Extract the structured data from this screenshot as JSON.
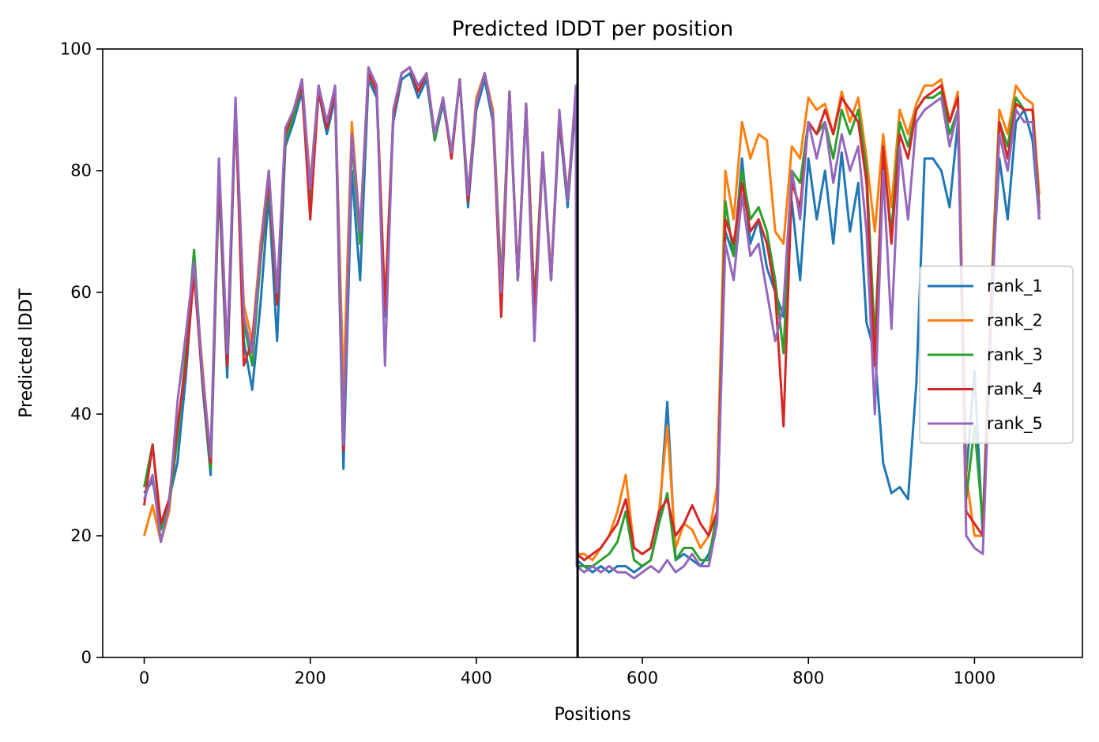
{
  "chart_data": {
    "type": "line",
    "title": "Predicted lDDT per position",
    "xlabel": "Positions",
    "ylabel": "Predicted lDDT",
    "xlim": [
      -50,
      1130
    ],
    "ylim": [
      0,
      100
    ],
    "xticks": [
      0,
      200,
      400,
      600,
      800,
      1000
    ],
    "yticks": [
      0,
      20,
      40,
      60,
      80,
      100
    ],
    "grid": false,
    "legend_position": "center-right",
    "vline_x": 522,
    "colors": {
      "rank_1": "#1f77b4",
      "rank_2": "#ff7f0e",
      "rank_3": "#2ca02c",
      "rank_4": "#d62728",
      "rank_5": "#9467bd",
      "vline": "#000000"
    },
    "series": [
      {
        "name": "rank_1",
        "x": [
          0,
          10,
          20,
          30,
          40,
          50,
          60,
          70,
          80,
          90,
          100,
          110,
          120,
          130,
          140,
          150,
          160,
          170,
          180,
          190,
          200,
          210,
          220,
          230,
          240,
          250,
          260,
          270,
          280,
          290,
          300,
          310,
          320,
          330,
          340,
          350,
          360,
          370,
          380,
          390,
          400,
          410,
          420,
          430,
          440,
          450,
          460,
          470,
          480,
          490,
          500,
          510,
          520,
          521,
          530,
          540,
          550,
          560,
          570,
          580,
          590,
          600,
          610,
          620,
          630,
          640,
          650,
          660,
          670,
          680,
          690,
          700,
          710,
          720,
          730,
          740,
          750,
          760,
          770,
          780,
          790,
          800,
          810,
          820,
          830,
          840,
          850,
          860,
          870,
          880,
          890,
          900,
          910,
          920,
          930,
          940,
          950,
          960,
          970,
          980,
          990,
          1000,
          1010,
          1020,
          1030,
          1040,
          1050,
          1060,
          1070,
          1078
        ],
        "y": [
          27,
          29,
          22,
          26,
          32,
          46,
          64,
          45,
          30,
          78,
          46,
          90,
          52,
          44,
          58,
          76,
          52,
          84,
          88,
          93,
          75,
          93,
          86,
          92,
          31,
          80,
          62,
          95,
          92,
          56,
          88,
          95,
          96,
          92,
          95,
          85,
          91,
          83,
          95,
          74,
          90,
          95,
          88,
          60,
          92,
          62,
          90,
          58,
          82,
          62,
          88,
          74,
          92,
          16,
          15,
          14,
          15,
          14,
          15,
          15,
          14,
          15,
          16,
          22,
          42,
          16,
          17,
          16,
          15,
          17,
          22,
          70,
          66,
          82,
          68,
          72,
          64,
          60,
          56,
          75,
          62,
          82,
          72,
          80,
          68,
          83,
          70,
          78,
          55,
          50,
          32,
          27,
          28,
          26,
          45,
          82,
          82,
          80,
          74,
          88,
          30,
          47,
          20,
          58,
          82,
          72,
          88,
          90,
          85,
          72
        ]
      },
      {
        "name": "rank_2",
        "x": [
          0,
          10,
          20,
          30,
          40,
          50,
          60,
          70,
          80,
          90,
          100,
          110,
          120,
          130,
          140,
          150,
          160,
          170,
          180,
          190,
          200,
          210,
          220,
          230,
          240,
          250,
          260,
          270,
          280,
          290,
          300,
          310,
          320,
          330,
          340,
          350,
          360,
          370,
          380,
          390,
          400,
          410,
          420,
          430,
          440,
          450,
          460,
          470,
          480,
          490,
          500,
          510,
          520,
          521,
          530,
          540,
          550,
          560,
          570,
          580,
          590,
          600,
          610,
          620,
          630,
          640,
          650,
          660,
          670,
          680,
          690,
          700,
          710,
          720,
          730,
          740,
          750,
          760,
          770,
          780,
          790,
          800,
          810,
          820,
          830,
          840,
          850,
          860,
          870,
          880,
          890,
          900,
          910,
          920,
          930,
          940,
          950,
          960,
          970,
          980,
          990,
          1000,
          1010,
          1020,
          1030,
          1040,
          1050,
          1060,
          1070,
          1078
        ],
        "y": [
          20,
          25,
          19,
          24,
          38,
          48,
          64,
          48,
          32,
          80,
          50,
          91,
          58,
          52,
          68,
          80,
          60,
          86,
          90,
          95,
          78,
          94,
          88,
          93,
          44,
          88,
          70,
          96,
          93,
          58,
          89,
          96,
          97,
          93,
          96,
          86,
          92,
          82,
          95,
          76,
          92,
          96,
          90,
          62,
          93,
          63,
          91,
          58,
          83,
          63,
          89,
          76,
          93,
          17,
          17,
          16,
          18,
          20,
          24,
          30,
          18,
          17,
          18,
          24,
          38,
          18,
          22,
          21,
          18,
          20,
          28,
          80,
          72,
          88,
          82,
          86,
          85,
          70,
          68,
          84,
          82,
          92,
          90,
          91,
          86,
          93,
          88,
          92,
          82,
          70,
          86,
          74,
          90,
          86,
          91,
          94,
          94,
          95,
          88,
          93,
          30,
          20,
          20,
          60,
          90,
          86,
          94,
          92,
          91,
          76
        ]
      },
      {
        "name": "rank_3",
        "x": [
          0,
          10,
          20,
          30,
          40,
          50,
          60,
          70,
          80,
          90,
          100,
          110,
          120,
          130,
          140,
          150,
          160,
          170,
          180,
          190,
          200,
          210,
          220,
          230,
          240,
          250,
          260,
          270,
          280,
          290,
          300,
          310,
          320,
          330,
          340,
          350,
          360,
          370,
          380,
          390,
          400,
          410,
          420,
          430,
          440,
          450,
          460,
          470,
          480,
          490,
          500,
          510,
          520,
          521,
          530,
          540,
          550,
          560,
          570,
          580,
          590,
          600,
          610,
          620,
          630,
          640,
          650,
          660,
          670,
          680,
          690,
          700,
          710,
          720,
          730,
          740,
          750,
          760,
          770,
          780,
          790,
          800,
          810,
          820,
          830,
          840,
          850,
          860,
          870,
          880,
          890,
          900,
          910,
          920,
          930,
          940,
          950,
          960,
          970,
          980,
          990,
          1000,
          1010,
          1020,
          1030,
          1040,
          1050,
          1060,
          1070,
          1078
        ],
        "y": [
          28,
          35,
          21,
          25,
          36,
          50,
          67,
          46,
          31,
          79,
          48,
          91,
          55,
          48,
          65,
          78,
          58,
          85,
          89,
          94,
          76,
          93,
          87,
          93,
          36,
          85,
          68,
          96,
          93,
          57,
          89,
          96,
          97,
          93,
          96,
          85,
          92,
          82,
          95,
          76,
          91,
          96,
          89,
          61,
          93,
          62,
          91,
          58,
          83,
          62,
          89,
          75,
          93,
          15,
          15,
          15,
          16,
          17,
          19,
          24,
          16,
          15,
          16,
          22,
          27,
          16,
          18,
          18,
          16,
          16,
          24,
          75,
          66,
          80,
          72,
          74,
          70,
          62,
          50,
          80,
          78,
          88,
          86,
          88,
          82,
          90,
          86,
          90,
          80,
          52,
          82,
          70,
          88,
          84,
          90,
          92,
          92,
          93,
          86,
          90,
          26,
          38,
          22,
          58,
          88,
          84,
          92,
          90,
          90,
          74
        ]
      },
      {
        "name": "rank_4",
        "x": [
          0,
          10,
          20,
          30,
          40,
          50,
          60,
          70,
          80,
          90,
          100,
          110,
          120,
          130,
          140,
          150,
          160,
          170,
          180,
          190,
          200,
          210,
          220,
          230,
          240,
          250,
          260,
          270,
          280,
          290,
          300,
          310,
          320,
          330,
          340,
          350,
          360,
          370,
          380,
          390,
          400,
          410,
          420,
          430,
          440,
          450,
          460,
          470,
          480,
          490,
          500,
          510,
          520,
          521,
          530,
          540,
          550,
          560,
          570,
          580,
          590,
          600,
          610,
          620,
          630,
          640,
          650,
          660,
          670,
          680,
          690,
          700,
          710,
          720,
          730,
          740,
          750,
          760,
          770,
          780,
          790,
          800,
          810,
          820,
          830,
          840,
          850,
          860,
          870,
          880,
          890,
          900,
          910,
          920,
          930,
          940,
          950,
          960,
          970,
          980,
          990,
          1000,
          1010,
          1020,
          1030,
          1040,
          1050,
          1060,
          1070,
          1078
        ],
        "y": [
          25,
          35,
          22,
          26,
          38,
          48,
          63,
          46,
          32,
          80,
          48,
          91,
          48,
          52,
          66,
          79,
          58,
          86,
          90,
          94,
          72,
          93,
          87,
          93,
          34,
          86,
          70,
          96,
          93,
          57,
          89,
          96,
          97,
          93,
          96,
          86,
          92,
          82,
          95,
          75,
          91,
          96,
          89,
          56,
          93,
          62,
          91,
          57,
          83,
          62,
          89,
          75,
          93,
          17,
          16,
          17,
          18,
          20,
          22,
          26,
          18,
          17,
          18,
          24,
          26,
          20,
          22,
          25,
          22,
          20,
          24,
          72,
          68,
          78,
          70,
          72,
          68,
          60,
          38,
          78,
          74,
          88,
          86,
          90,
          86,
          92,
          90,
          88,
          78,
          48,
          84,
          68,
          86,
          82,
          90,
          92,
          93,
          94,
          88,
          92,
          24,
          22,
          20,
          56,
          88,
          82,
          91,
          90,
          90,
          73
        ]
      },
      {
        "name": "rank_5",
        "x": [
          0,
          10,
          20,
          30,
          40,
          50,
          60,
          70,
          80,
          90,
          100,
          110,
          120,
          130,
          140,
          150,
          160,
          170,
          180,
          190,
          200,
          210,
          220,
          230,
          240,
          250,
          260,
          270,
          280,
          290,
          300,
          310,
          320,
          330,
          340,
          350,
          360,
          370,
          380,
          390,
          400,
          410,
          420,
          430,
          440,
          450,
          460,
          470,
          480,
          490,
          500,
          510,
          520,
          521,
          530,
          540,
          550,
          560,
          570,
          580,
          590,
          600,
          610,
          620,
          630,
          640,
          650,
          660,
          670,
          680,
          690,
          700,
          710,
          720,
          730,
          740,
          750,
          760,
          770,
          780,
          790,
          800,
          810,
          820,
          830,
          840,
          850,
          860,
          870,
          880,
          890,
          900,
          910,
          920,
          930,
          940,
          950,
          960,
          970,
          980,
          990,
          1000,
          1010,
          1020,
          1030,
          1040,
          1050,
          1060,
          1070,
          1078
        ],
        "y": [
          26,
          30,
          19,
          25,
          42,
          53,
          65,
          47,
          33,
          82,
          50,
          92,
          56,
          50,
          67,
          80,
          60,
          87,
          90,
          95,
          77,
          94,
          88,
          94,
          35,
          86,
          70,
          97,
          94,
          48,
          90,
          96,
          97,
          94,
          96,
          86,
          92,
          83,
          95,
          76,
          91,
          96,
          89,
          60,
          93,
          62,
          91,
          52,
          83,
          62,
          90,
          75,
          94,
          15,
          14,
          15,
          14,
          15,
          14,
          14,
          13,
          14,
          15,
          14,
          16,
          14,
          15,
          17,
          15,
          15,
          22,
          68,
          62,
          76,
          66,
          68,
          60,
          52,
          58,
          80,
          72,
          88,
          82,
          88,
          78,
          86,
          80,
          84,
          70,
          40,
          80,
          54,
          84,
          72,
          88,
          90,
          91,
          92,
          84,
          90,
          20,
          18,
          17,
          54,
          86,
          80,
          90,
          88,
          88,
          72
        ]
      }
    ]
  }
}
